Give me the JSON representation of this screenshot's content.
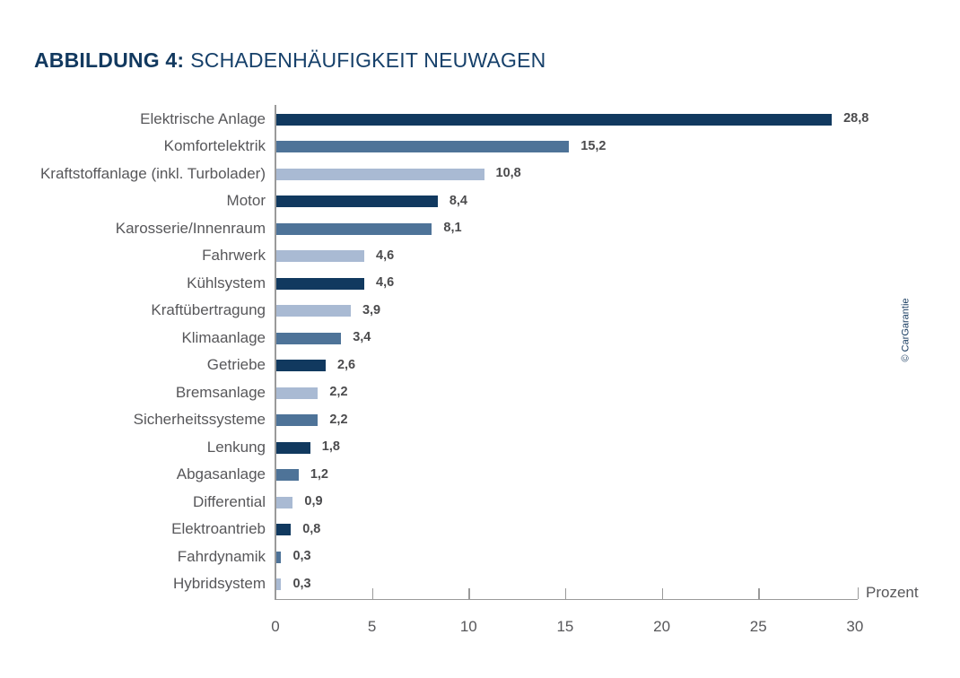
{
  "header": {
    "title_prefix": "ABBILDUNG 4:",
    "title_main": "SCHADENHÄUFIGKEIT NEUWAGEN"
  },
  "watermark": {
    "text": "© CarGarantie"
  },
  "chart_data": {
    "type": "bar",
    "orientation": "horizontal",
    "title": "Schadenhäufigkeit Neuwagen",
    "xlabel": "Prozent",
    "ylabel": "",
    "xlim": [
      0,
      30
    ],
    "x_ticks": [
      0,
      5,
      10,
      15,
      20,
      25,
      30
    ],
    "grid": false,
    "categories": [
      "Elektrische Anlage",
      "Komfortelektrik",
      "Kraftstoffanlage (inkl. Turbolader)",
      "Motor",
      "Karosserie/Innenraum",
      "Fahrwerk",
      "Kühlsystem",
      "Kraftübertragung",
      "Klimaanlage",
      "Getriebe",
      "Bremsanlage",
      "Sicherheitssysteme",
      "Lenkung",
      "Abgasanlage",
      "Differential",
      "Elektroantrieb",
      "Fahrdynamik",
      "Hybridsystem"
    ],
    "values": [
      28.8,
      15.2,
      10.8,
      8.4,
      8.1,
      4.6,
      4.6,
      3.9,
      3.4,
      2.6,
      2.2,
      2.2,
      1.8,
      1.2,
      0.9,
      0.8,
      0.3,
      0.3
    ],
    "value_labels": [
      "28,8",
      "15,2",
      "10,8",
      "8,4",
      "8,1",
      "4,6",
      "4,6",
      "3,9",
      "3,4",
      "2,6",
      "2,2",
      "2,2",
      "1,8",
      "1,2",
      "0,9",
      "0,8",
      "0,3",
      "0,3"
    ],
    "bar_color_keys": [
      "dark",
      "medium",
      "light",
      "dark",
      "medium",
      "light",
      "dark",
      "light",
      "medium",
      "dark",
      "light",
      "medium",
      "dark",
      "medium",
      "light",
      "dark",
      "medium",
      "light"
    ],
    "colors": {
      "dark": "#11395f",
      "medium": "#4e7398",
      "light": "#a9bad3"
    },
    "axis_color": "#9a9a9a",
    "category_label_color": "#57575a",
    "value_label_color": "#4b4b4d",
    "unit_label": "Prozent"
  }
}
